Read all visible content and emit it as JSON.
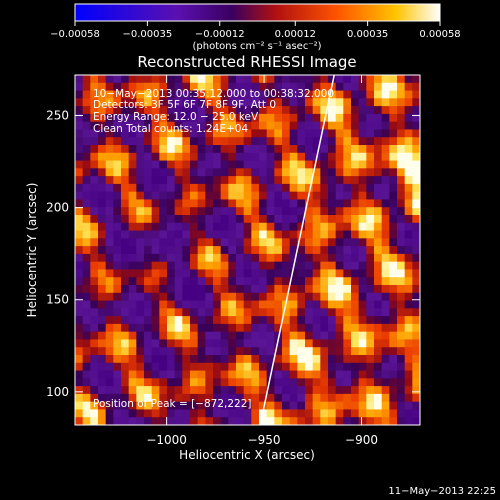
{
  "chart_data": {
    "type": "heatmap",
    "title": "Reconstructed RHESSI Image",
    "xlabel": "Heliocentric X (arcsec)",
    "ylabel": "Heliocentric Y (arcsec)",
    "xlim": [
      -1047,
      -870
    ],
    "ylim": [
      82,
      272
    ],
    "x_ticks": [
      -1000,
      -950,
      -900
    ],
    "x_tick_labels": [
      "−1000",
      "−950",
      "−900"
    ],
    "y_ticks": [
      100,
      150,
      200,
      250
    ],
    "y_tick_labels": [
      "100",
      "150",
      "200",
      "250"
    ],
    "colorbar": {
      "min": -0.00058,
      "max": 0.00058,
      "ticks": [
        -0.00058,
        -0.00035,
        -0.00012,
        0.00012,
        0.00035,
        0.00058
      ],
      "tick_labels": [
        "−0.00058",
        "−0.00035",
        "−0.00012",
        "0.00012",
        "0.00035",
        "0.00058"
      ],
      "unit_label": "(photons cm⁻² s⁻¹ asec⁻²)",
      "colors": [
        "#0000ff",
        "#6e1fbf",
        "#5a0d8e",
        "#c8140f",
        "#ff6a00",
        "#ffc000",
        "#ffffff"
      ]
    },
    "annotations": [
      "10−May−2013 00:35:12.000 to 00:38:32.000",
      "Detectors: 3F 5F 6F 7F 8F 9F, Att 0",
      "Energy Range: 12.0 − 25.0 keV",
      "Clean    Total counts: 1.24E+04"
    ],
    "peak_label": "Position of Peak = [−872,222]",
    "peak_position": [
      -872,
      222
    ],
    "limb_line": {
      "x": [
        -952,
        -914
      ],
      "y": [
        82,
        272
      ]
    },
    "grid": false,
    "grid_size": [
      45,
      45
    ]
  },
  "footer": {
    "timestamp": "11−May−2013 22:25"
  }
}
